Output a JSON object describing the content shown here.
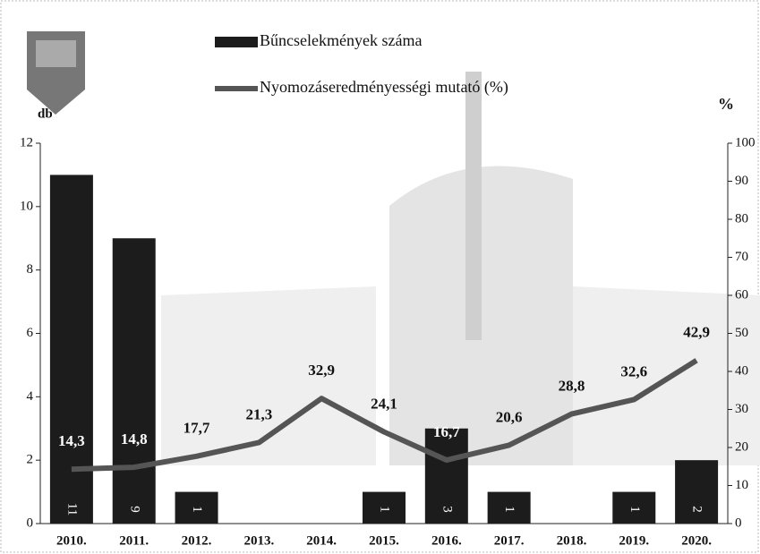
{
  "chart_data": {
    "type": "bar",
    "categories": [
      "2010.",
      "2011.",
      "2012.",
      "2013.",
      "2014.",
      "2015.",
      "2016.",
      "2017.",
      "2018.",
      "2019.",
      "2020."
    ],
    "series": [
      {
        "name": "Bűncselekmények száma",
        "type": "bar",
        "color": "#1c1c1c",
        "values": [
          11,
          9,
          1,
          null,
          null,
          1,
          3,
          1,
          null,
          1,
          2
        ]
      },
      {
        "name": "Nyomozáseredményességi mutató (%)",
        "type": "line",
        "axis": "y2",
        "color": "#555555",
        "values": [
          14.3,
          14.8,
          17.7,
          21.3,
          32.9,
          24.1,
          16.7,
          20.6,
          28.8,
          32.6,
          42.9
        ],
        "value_labels": [
          "14,3",
          "14,8",
          "17,7",
          "21,3",
          "32,9",
          "24,1",
          "16,7",
          "20,6",
          "28,8",
          "32,6",
          "42,9"
        ]
      }
    ],
    "y_label": "db",
    "y2_label": "%",
    "ylim": [
      0,
      12
    ],
    "yticks": [
      0,
      2,
      4,
      6,
      8,
      10,
      12
    ],
    "y2lim": [
      0,
      100
    ],
    "y2ticks": [
      0,
      10,
      20,
      30,
      40,
      50,
      60,
      70,
      80,
      90,
      100
    ]
  }
}
